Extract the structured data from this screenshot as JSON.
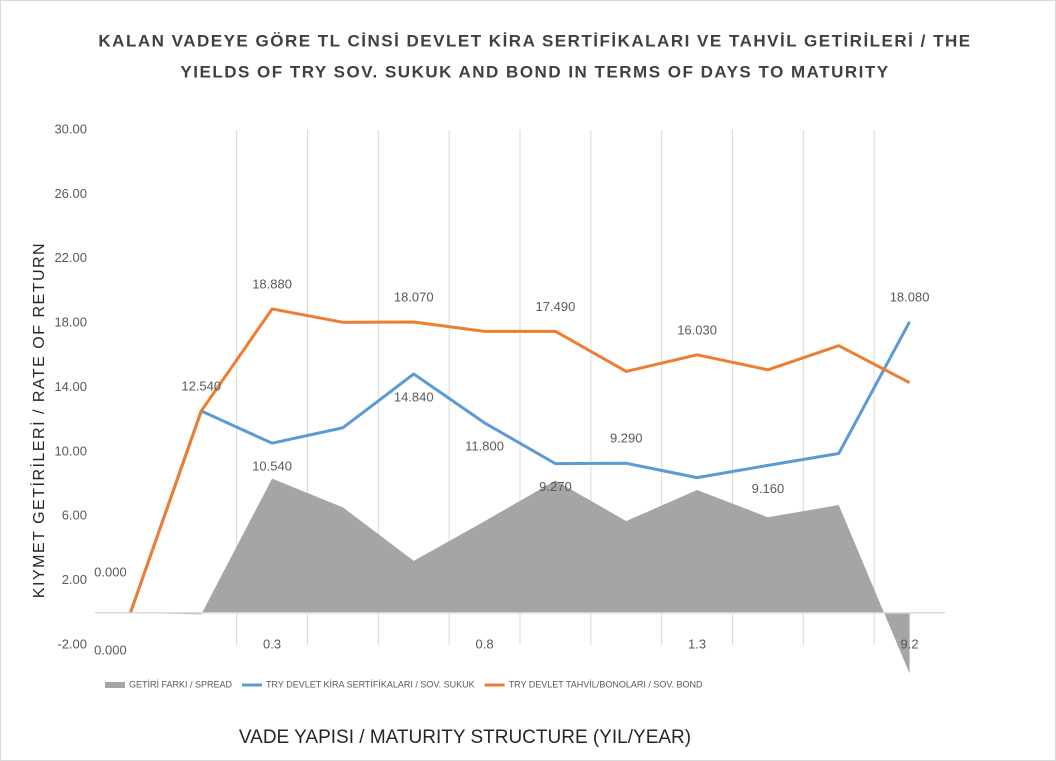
{
  "chart_data": {
    "type": "line",
    "title": [
      "KALAN VADEYE GÖRE TL CİNSİ DEVLET KİRA SERTİFİKALARI VE TAHVİL GETİRİLERİ / THE",
      "YIELDS OF TRY SOV. SUKUK AND BOND IN TERMS OF DAYS TO MATURITY"
    ],
    "y_label": "KIYMET GETİRİLERİ / RATE OF RETURN",
    "x_label": "VADE YAPISI  / MATURITY STRUCTURE (YIL/YEAR)",
    "categories": [
      null,
      null,
      "0.3",
      null,
      null,
      "0.8",
      null,
      null,
      "1.3",
      null,
      null,
      "9.2"
    ],
    "ylim": [
      -2,
      30
    ],
    "yticks": [
      {
        "value": -2,
        "label": "-2.00"
      },
      {
        "value": 2,
        "label": "2.00"
      },
      {
        "value": 6,
        "label": "6.00"
      },
      {
        "value": 10,
        "label": "10.00"
      },
      {
        "value": 14,
        "label": "14.00"
      },
      {
        "value": 18,
        "label": "18.00"
      },
      {
        "value": 22,
        "label": "22.00"
      },
      {
        "value": 26,
        "label": "26.00"
      },
      {
        "value": 30,
        "label": "30.00"
      }
    ],
    "grid": false,
    "legend": "bottom",
    "series": [
      {
        "name": "GETİRİ FARKI / SPREAD",
        "type": "area",
        "color": "#a5a5a5",
        "values": [
          0,
          -0.1,
          8.34,
          6.55,
          3.23,
          5.69,
          8.22,
          5.7,
          7.63,
          5.94,
          6.7,
          -3.78
        ]
      },
      {
        "name": "TRY DEVLET KİRA SERTİFİKALARI / SOV. SUKUK",
        "type": "line",
        "color": "#5b9bd5",
        "values": [
          0,
          12.54,
          10.54,
          11.5,
          14.84,
          11.8,
          9.27,
          9.29,
          8.4,
          9.16,
          9.9,
          18.08
        ],
        "value_labels": [
          "0.000",
          null,
          "10.540",
          null,
          "14.840",
          "11.800",
          "9.270",
          "9.290",
          null,
          "9.160",
          null,
          "18.080"
        ]
      },
      {
        "name": "TRY DEVLET TAHVİL/BONOLARI / SOV. BOND",
        "type": "line",
        "color": "#ed7d31",
        "values": [
          0,
          12.54,
          18.88,
          18.05,
          18.07,
          17.49,
          17.49,
          15.0,
          16.03,
          15.1,
          16.6,
          14.3
        ],
        "value_labels": [
          "0.000",
          "12.540",
          "18.880",
          null,
          "18.070",
          null,
          "17.490",
          null,
          "16.030",
          null,
          null,
          null
        ]
      }
    ]
  }
}
